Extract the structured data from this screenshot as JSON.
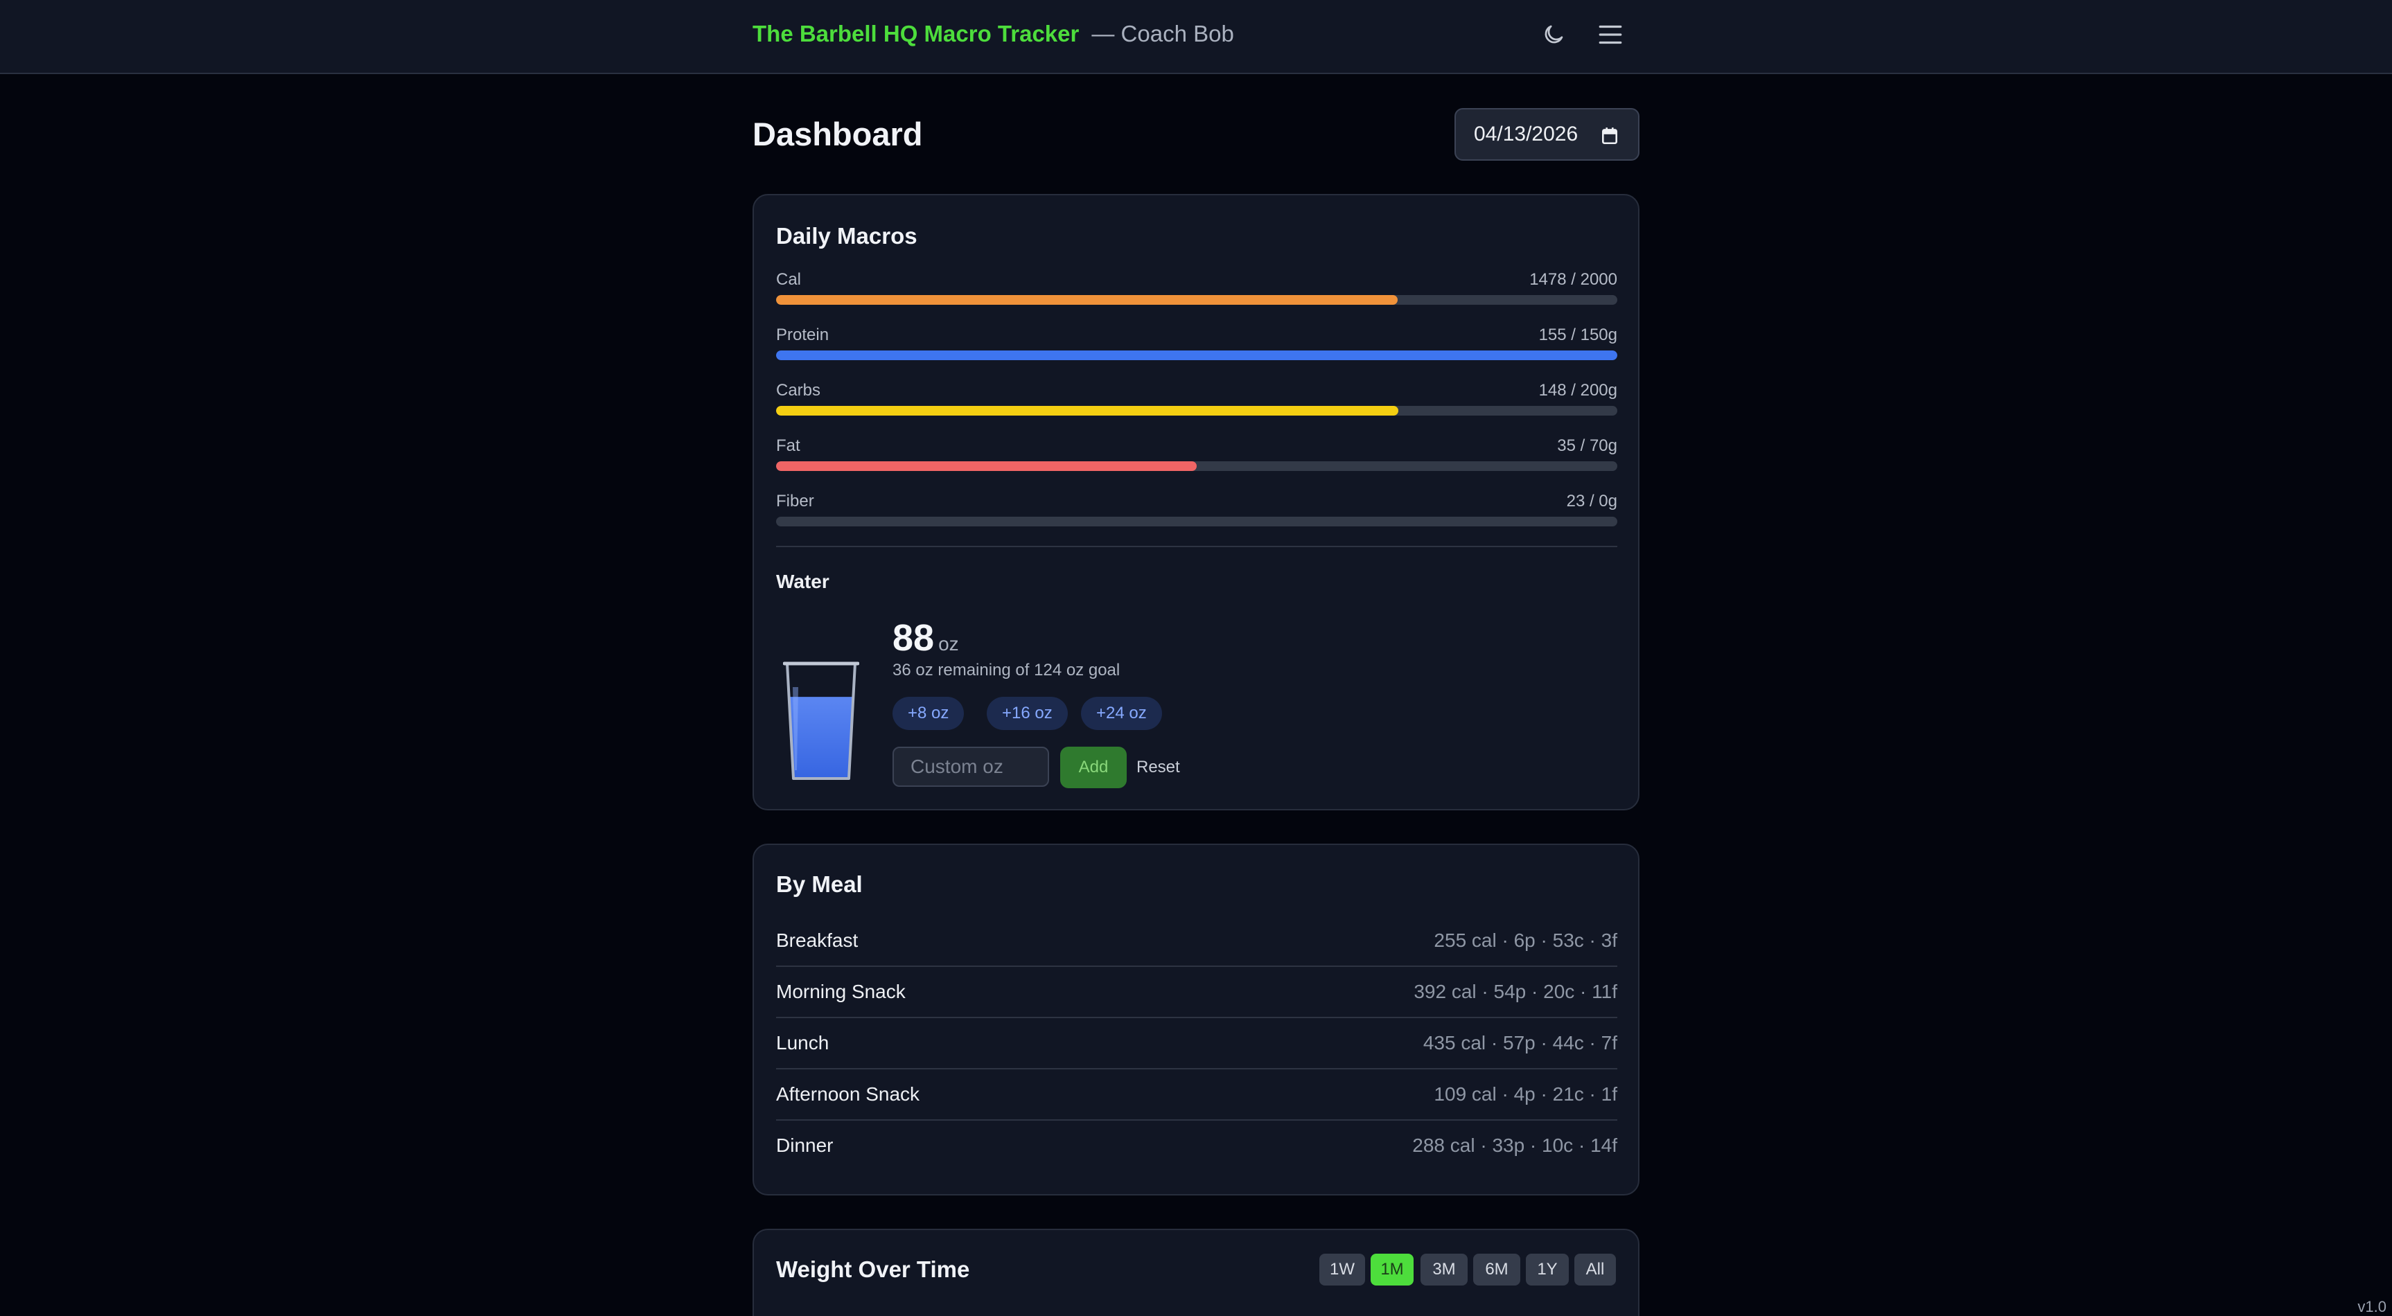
{
  "header": {
    "brand": "The Barbell HQ Macro Tracker",
    "coach": "— Coach Bob",
    "theme_icon": "moon-icon",
    "menu_icon": "hamburger-menu-icon"
  },
  "page": {
    "title": "Dashboard",
    "date": "04/13/2026",
    "date_icon": "calendar-icon"
  },
  "macros": {
    "title": "Daily Macros",
    "items": [
      {
        "label": "Cal",
        "value": "1478 / 2000",
        "fraction": 0.739,
        "color": "#f0923a"
      },
      {
        "label": "Protein",
        "value": "155 / 150g",
        "fraction": 1.0,
        "color": "#3e75f0"
      },
      {
        "label": "Carbs",
        "value": "148 / 200g",
        "fraction": 0.74,
        "color": "#f5cf12"
      },
      {
        "label": "Fat",
        "value": "35 / 70g",
        "fraction": 0.5,
        "color": "#ef6565"
      },
      {
        "label": "Fiber",
        "value": "23 / 0g",
        "fraction": 0.0,
        "color": "#22c55e"
      }
    ]
  },
  "water": {
    "title": "Water",
    "amount": "88",
    "unit": "oz",
    "remaining": "36 oz remaining of 124 oz goal",
    "fill_fraction": 0.71,
    "quick_add": [
      "+8 oz",
      "+16 oz",
      "+24 oz"
    ],
    "custom_placeholder": "Custom oz",
    "add_label": "Add",
    "reset_label": "Reset",
    "glass_icon": "water-glass-icon"
  },
  "meals": {
    "title": "By Meal",
    "items": [
      {
        "name": "Breakfast",
        "stats": "255 cal · 6p · 53c · 3f"
      },
      {
        "name": "Morning Snack",
        "stats": "392 cal · 54p · 20c · 11f"
      },
      {
        "name": "Lunch",
        "stats": "435 cal · 57p · 44c · 7f"
      },
      {
        "name": "Afternoon Snack",
        "stats": "109 cal · 4p · 21c · 1f"
      },
      {
        "name": "Dinner",
        "stats": "288 cal · 33p · 10c · 14f"
      }
    ]
  },
  "weight": {
    "title": "Weight Over Time",
    "ranges": [
      "1W",
      "1M",
      "3M",
      "6M",
      "1Y",
      "All"
    ],
    "active_range": "1M"
  },
  "footer": {
    "version": "v1.0"
  }
}
